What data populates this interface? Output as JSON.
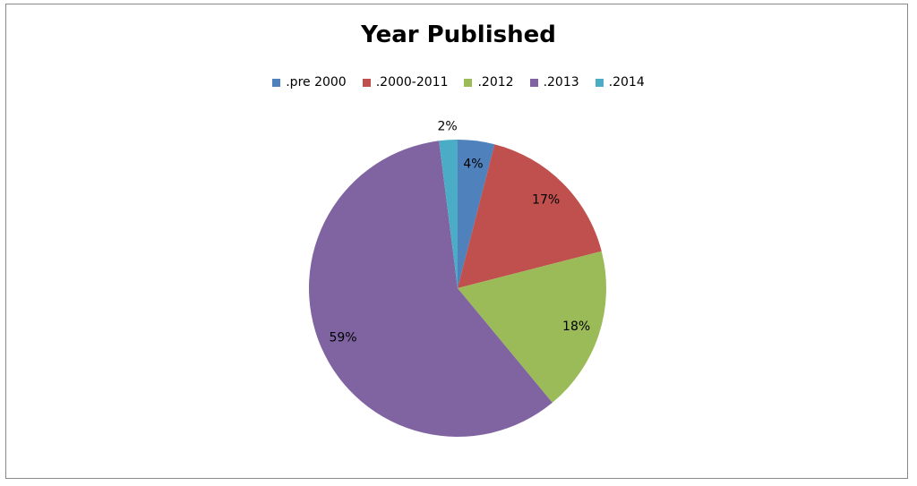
{
  "chart_data": {
    "type": "pie",
    "title": "Year Published",
    "categories": [
      ".pre 2000",
      ".2000-2011",
      ".2012",
      ".2013",
      ".2014"
    ],
    "values": [
      4,
      17,
      18,
      59,
      2
    ],
    "value_labels": [
      "4%",
      "17%",
      "18%",
      "59%",
      "2%"
    ],
    "colors": [
      "#4f81bd",
      "#c0504d",
      "#9bbb59",
      "#8064a2",
      "#4bacc6"
    ],
    "legend": "top"
  }
}
